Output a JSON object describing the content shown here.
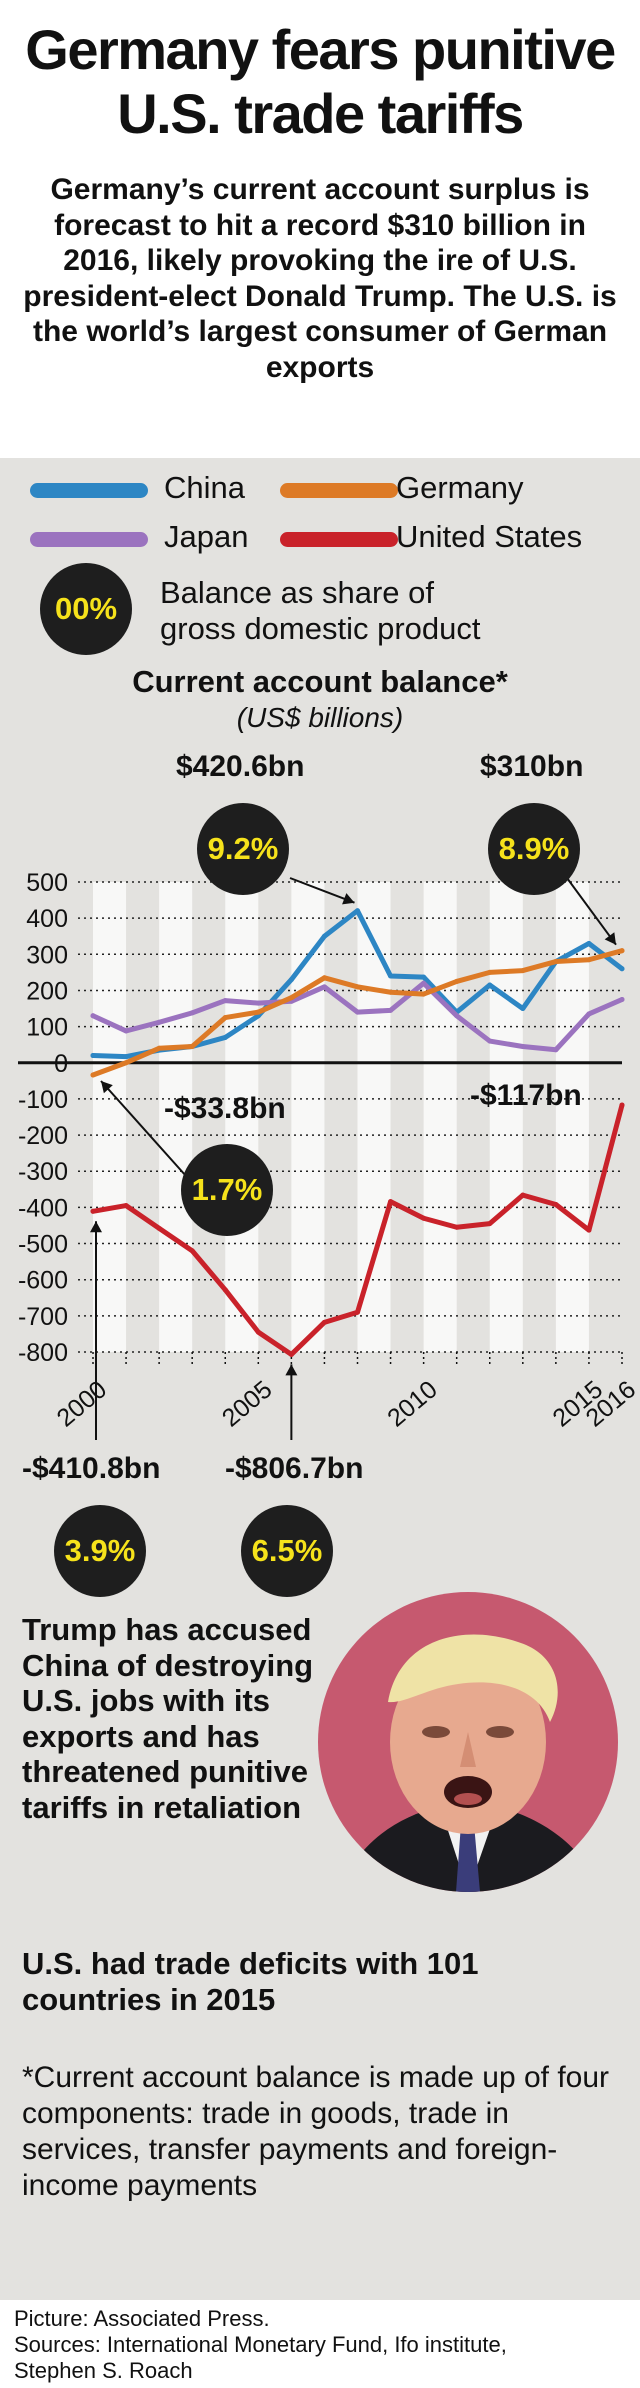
{
  "header": {
    "title_line1": "Germany fears punitive",
    "title_line2": "U.S. trade tariffs",
    "subtitle": "Germany’s current account surplus is forecast to hit a record $310 billion in 2016, likely provoking the ire of U.S. president-elect Donald Trump. The U.S. is the world’s largest consumer of German exports"
  },
  "legend": {
    "china": "China",
    "germany": "Germany",
    "japan": "Japan",
    "us": "United States",
    "share_bubble": "00%",
    "share_text_line1": "Balance as share of",
    "share_text_line2": "gross domestic product"
  },
  "colors": {
    "china": "#2d86c4",
    "germany": "#dd7a26",
    "japan": "#9b73bf",
    "us": "#c9222a",
    "bubble": "#1e1e1e",
    "bubble_text": "#f6e21b"
  },
  "annotations": {
    "china_peak_value": "$420.6bn",
    "china_peak_pct": "9.2%",
    "germany_2016_value": "$310bn",
    "germany_2016_pct": "8.9%",
    "germany_2000_value": "-$33.8bn",
    "germany_2000_pct": "1.7%",
    "us_2016_value": "-$117bn",
    "us_2000_value": "-$410.8bn",
    "us_2000_pct": "3.9%",
    "us_2006_value": "-$806.7bn",
    "us_2006_pct": "6.5%"
  },
  "chart_data": {
    "type": "line",
    "title": "Current account balance*",
    "subtitle": "(US$ billions)",
    "xlabel": "",
    "ylabel": "",
    "x": [
      2000,
      2001,
      2002,
      2003,
      2004,
      2005,
      2006,
      2007,
      2008,
      2009,
      2010,
      2011,
      2012,
      2013,
      2014,
      2015,
      2016
    ],
    "x_tick_labels": [
      "2000",
      "2005",
      "2010",
      "2015",
      "2016"
    ],
    "ylim": [
      -800,
      500
    ],
    "y_ticks": [
      "500",
      "400",
      "300",
      "200",
      "100",
      "0",
      "-100",
      "-200",
      "-300",
      "-400",
      "-500",
      "-600",
      "-700",
      "-800"
    ],
    "y_tick_values": [
      500,
      400,
      300,
      200,
      100,
      0,
      -100,
      -200,
      -300,
      -400,
      -500,
      -600,
      -700,
      -800
    ],
    "series": [
      {
        "name": "China",
        "key": "china",
        "values": [
          20,
          17,
          35,
          45,
          70,
          130,
          230,
          350,
          420.6,
          240,
          237,
          140,
          215,
          150,
          280,
          330,
          260
        ]
      },
      {
        "name": "Japan",
        "key": "japan",
        "values": [
          130,
          88,
          112,
          138,
          172,
          165,
          170,
          210,
          140,
          145,
          220,
          130,
          60,
          45,
          36,
          135,
          175
        ]
      },
      {
        "name": "Germany",
        "key": "germany",
        "values": [
          -33.8,
          0,
          40,
          45,
          125,
          140,
          180,
          235,
          210,
          195,
          190,
          225,
          250,
          255,
          280,
          285,
          310
        ]
      },
      {
        "name": "United States",
        "key": "us",
        "values": [
          -410.8,
          -395,
          -458,
          -520,
          -628,
          -745,
          -806.7,
          -718,
          -690,
          -384,
          -430,
          -455,
          -445,
          -366,
          -392,
          -463,
          -117
        ]
      }
    ]
  },
  "body": {
    "trump_text": "Trump has accused China of destroying U.S. jobs with its exports and has threatened punitive tariffs in retaliation",
    "deficit_text": "U.S. had trade deficits with 101 countries in 2015",
    "footnote": "*Current account balance is made up of four components: trade in goods, trade in services, transfer payments and foreign-income payments",
    "credits_line1": "Picture: Associated Press.",
    "credits_line2": "Sources: International Monetary Fund, Ifo institute,",
    "credits_line3": "Stephen S. Roach"
  }
}
